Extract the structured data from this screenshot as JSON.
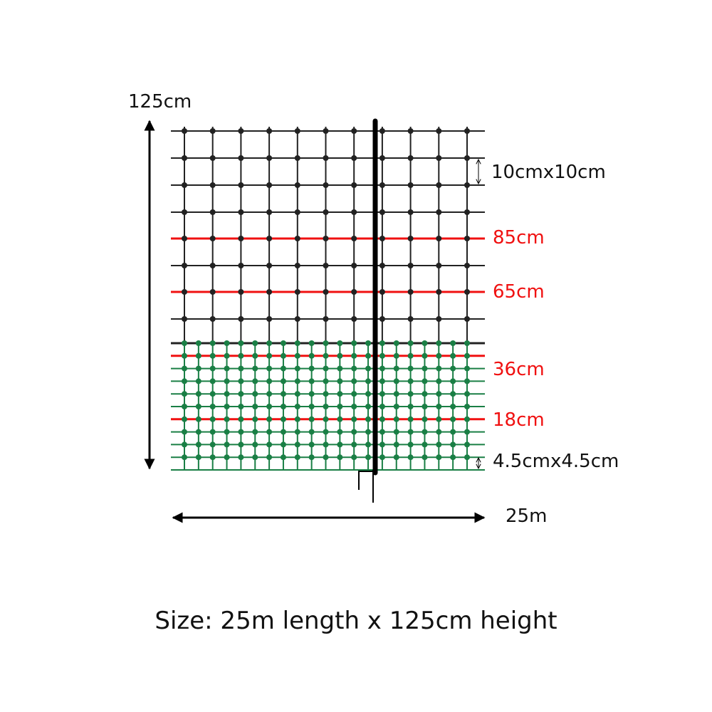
{
  "labels": {
    "height_total": "125cm",
    "upper_mesh": "10cmx10cm",
    "wire_85": "85cm",
    "wire_65": "65cm",
    "wire_36": "36cm",
    "wire_18": "18cm",
    "lower_mesh": "4.5cmx4.5cm",
    "length": "25m"
  },
  "caption": "Size: 25m length x 125cm height",
  "colors": {
    "upper_mesh": "#222222",
    "lower_mesh": "#1a7f45",
    "live_wire": "#f01010",
    "post": "#000000"
  }
}
